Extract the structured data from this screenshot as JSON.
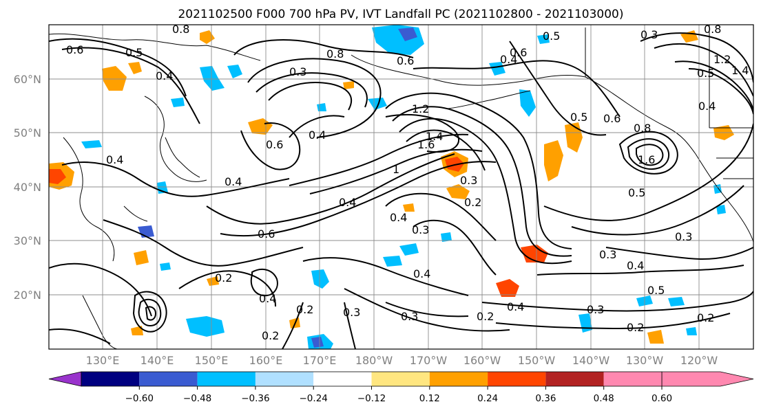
{
  "title": "2021102500 F000 700 hPa PV, IVT Landfall PC (2021102800 - 2021103000)",
  "lat_labels": [
    "60°N",
    "50°N",
    "40°N",
    "30°N",
    "20°N"
  ],
  "lon_labels": [
    "130°E",
    "140°E",
    "150°E",
    "160°E",
    "170°E",
    "180°W",
    "170°W",
    "160°W",
    "150°W",
    "140°W",
    "130°W",
    "120°W"
  ],
  "colorbar": {
    "colors": [
      "#9933cc",
      "#000080",
      "#3a5bd1",
      "#00bfff",
      "#b0e0ff",
      "#ffffff",
      "#ffe680",
      "#ffa000",
      "#ff4500",
      "#b22222",
      "#ff88b0"
    ],
    "tick_labels": [
      "−0.60",
      "−0.48",
      "−0.36",
      "−0.24",
      "−0.12",
      "0.12",
      "0.24",
      "0.36",
      "0.48",
      "0.60"
    ]
  },
  "contour_labels": [
    "0.8",
    "0.6",
    "0.5",
    "0.3",
    "0.8",
    "0.6",
    "0.6",
    "0.4",
    "0.5",
    "0.8",
    "0.3",
    "0.4",
    "0.6",
    "0.4",
    "0.4",
    "0.4",
    "1.6",
    "1.4",
    "1.2",
    "1",
    "0.3",
    "0.2",
    "0.4",
    "0.3",
    "0.6",
    "0.5",
    "0.4",
    "0.2",
    "0.4",
    "0.2",
    "0.2",
    "0.3",
    "0.3",
    "0.4",
    "0.5",
    "0.3",
    "0.4",
    "0.3",
    "0.2",
    "0.4",
    "0.3",
    "0.2",
    "0.5",
    "0.2",
    "1.6",
    "0.8",
    "0.6",
    "0.5",
    "0.4",
    "1.2",
    "1.4"
  ]
}
